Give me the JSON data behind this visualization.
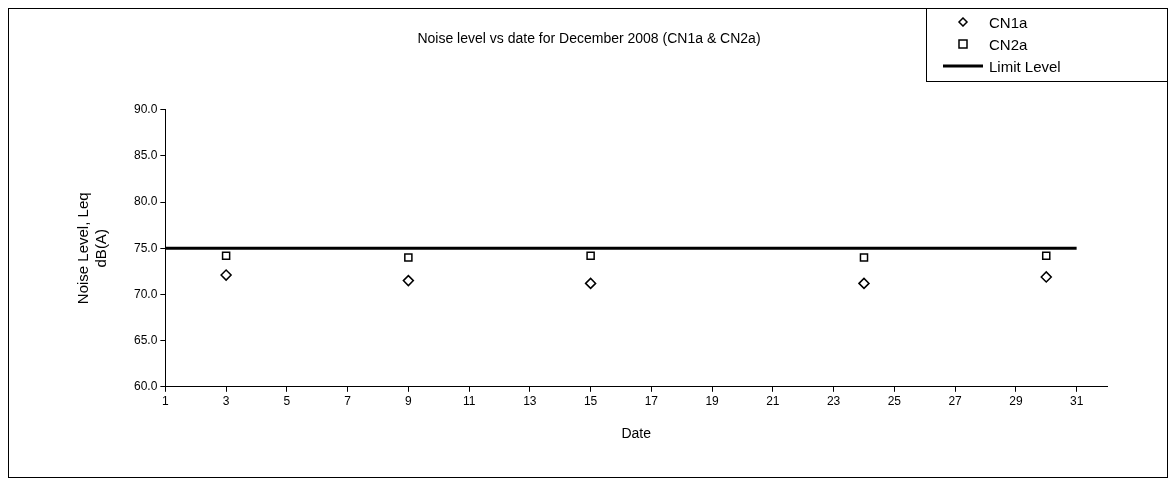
{
  "chart_data": {
    "type": "scatter",
    "title": "Noise level vs date for December 2008 (CN1a & CN2a)",
    "xlabel": "Date",
    "ylabel": "Noise Level, Leq\ndB(A)",
    "xlim": [
      1,
      32
    ],
    "xticks": [
      1,
      3,
      5,
      7,
      9,
      11,
      13,
      15,
      17,
      19,
      21,
      23,
      25,
      27,
      29,
      31
    ],
    "ylim": [
      60,
      90
    ],
    "yticks": [
      {
        "value": 60,
        "label": "60.0"
      },
      {
        "value": 65,
        "label": "65.0"
      },
      {
        "value": 70,
        "label": "70.0"
      },
      {
        "value": 75,
        "label": "75.0"
      },
      {
        "value": 80,
        "label": "80.0"
      },
      {
        "value": 85,
        "label": "85.0"
      },
      {
        "value": 90,
        "label": "90.0"
      }
    ],
    "grid": false,
    "legend": "top right",
    "series": [
      {
        "name": "CN1a",
        "marker": "diamond",
        "color": "#000000",
        "x": [
          3,
          9,
          15,
          24,
          30
        ],
        "values": [
          72.1,
          71.5,
          71.2,
          71.2,
          71.9
        ]
      },
      {
        "name": "CN2a",
        "marker": "square",
        "color": "#000000",
        "x": [
          3,
          9,
          15,
          24,
          30
        ],
        "values": [
          74.2,
          74.0,
          74.2,
          74.0,
          74.2
        ]
      },
      {
        "name": "Limit Level",
        "type": "line",
        "marker": "none",
        "color": "#000000",
        "x": [
          1,
          31
        ],
        "values": [
          75,
          75
        ]
      }
    ]
  }
}
